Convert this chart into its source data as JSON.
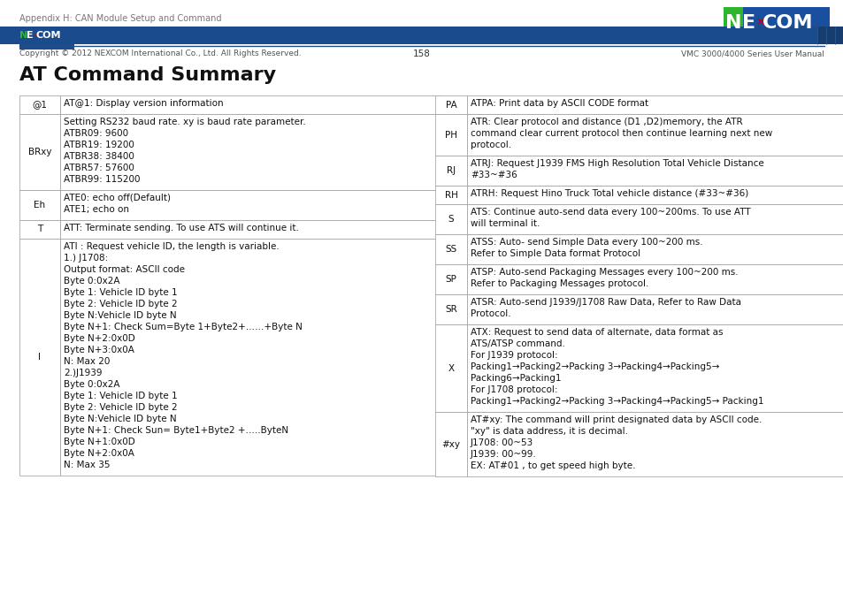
{
  "page_header": "Appendix H: CAN Module Setup and Command",
  "title": "AT Command Summary",
  "footer_copyright": "Copyright © 2012 NEXCOM International Co., Ltd. All Rights Reserved.",
  "footer_page": "158",
  "footer_right": "VMC 3000/4000 Series User Manual",
  "header_line_color": "#003d7a",
  "header_rect_color": "#1e4d8c",
  "footer_bar_color": "#1a4b8c",
  "table_border_color": "#999999",
  "bg_color": "#ffffff",
  "left_table": [
    {
      "cmd": "@1",
      "desc": "AT@1: Display version information"
    },
    {
      "cmd": "BRxy",
      "desc": "Setting RS232 baud rate. xy is baud rate parameter.\nATBR09: 9600\nATBR19: 19200\nATBR38: 38400\nATBR57: 57600\nATBR99: 115200"
    },
    {
      "cmd": "Eh",
      "desc": "ATE0: echo off(Default)\nATE1; echo on"
    },
    {
      "cmd": "T",
      "desc": "ATT: Terminate sending. To use ATS will continue it."
    },
    {
      "cmd": "I",
      "desc": "ATI : Request vehicle ID, the length is variable.\n1.) J1708:\nOutput format: ASCII code\nByte 0:0x2A\nByte 1: Vehicle ID byte 1\nByte 2: Vehicle ID byte 2\nByte N:Vehicle ID byte N\nByte N+1: Check Sum=Byte 1+Byte2+……+Byte N\nByte N+2:0x0D\nByte N+3:0x0A\nN: Max 20\n2.)J1939\nByte 0:0x2A\nByte 1: Vehicle ID byte 1\nByte 2: Vehicle ID byte 2\nByte N:Vehicle ID byte N\nByte N+1: Check Sun= Byte1+Byte2 +…..ByteN\nByte N+1:0x0D\nByte N+2:0x0A\nN: Max 35"
    }
  ],
  "right_table": [
    {
      "cmd": "PA",
      "desc": "ATPA: Print data by ASCII CODE format"
    },
    {
      "cmd": "PH",
      "desc": "ATR: Clear protocol and distance (D1 ,D2)memory, the ATR\ncommand clear current protocol then continue learning next new\nprotocol."
    },
    {
      "cmd": "RJ",
      "desc": "ATRJ: Request J1939 FMS High Resolution Total Vehicle Distance\n#33~#36"
    },
    {
      "cmd": "RH",
      "desc": "ATRH: Request Hino Truck Total vehicle distance (#33~#36)"
    },
    {
      "cmd": "S",
      "desc": "ATS: Continue auto-send data every 100~200ms. To use ATT\nwill terminal it."
    },
    {
      "cmd": "SS",
      "desc": "ATSS: Auto- send Simple Data every 100~200 ms.\nRefer to Simple Data format Protocol"
    },
    {
      "cmd": "SP",
      "desc": "ATSP: Auto-send Packaging Messages every 100~200 ms.\nRefer to Packaging Messages protocol."
    },
    {
      "cmd": "SR",
      "desc": "ATSR: Auto-send J1939/J1708 Raw Data, Refer to Raw Data\nProtocol."
    },
    {
      "cmd": "X",
      "desc": "ATX: Request to send data of alternate, data format as\nATS/ATSP command.\nFor J1939 protocol:\nPacking1→Packing2→Packing 3→Packing4→Packing5→\nPacking6→Packing1\nFor J1708 protocol:\nPacking1→Packing2→Packing 3→Packing4→Packing5→ Packing1"
    },
    {
      "cmd": "#xy",
      "desc": "AT#xy: The command will print designated data by ASCII code.\n\"xy\" is data address, it is decimal.\nJ1708: 00~53\nJ1939: 00~99.\nEX: AT#01 , to get speed high byte."
    }
  ]
}
